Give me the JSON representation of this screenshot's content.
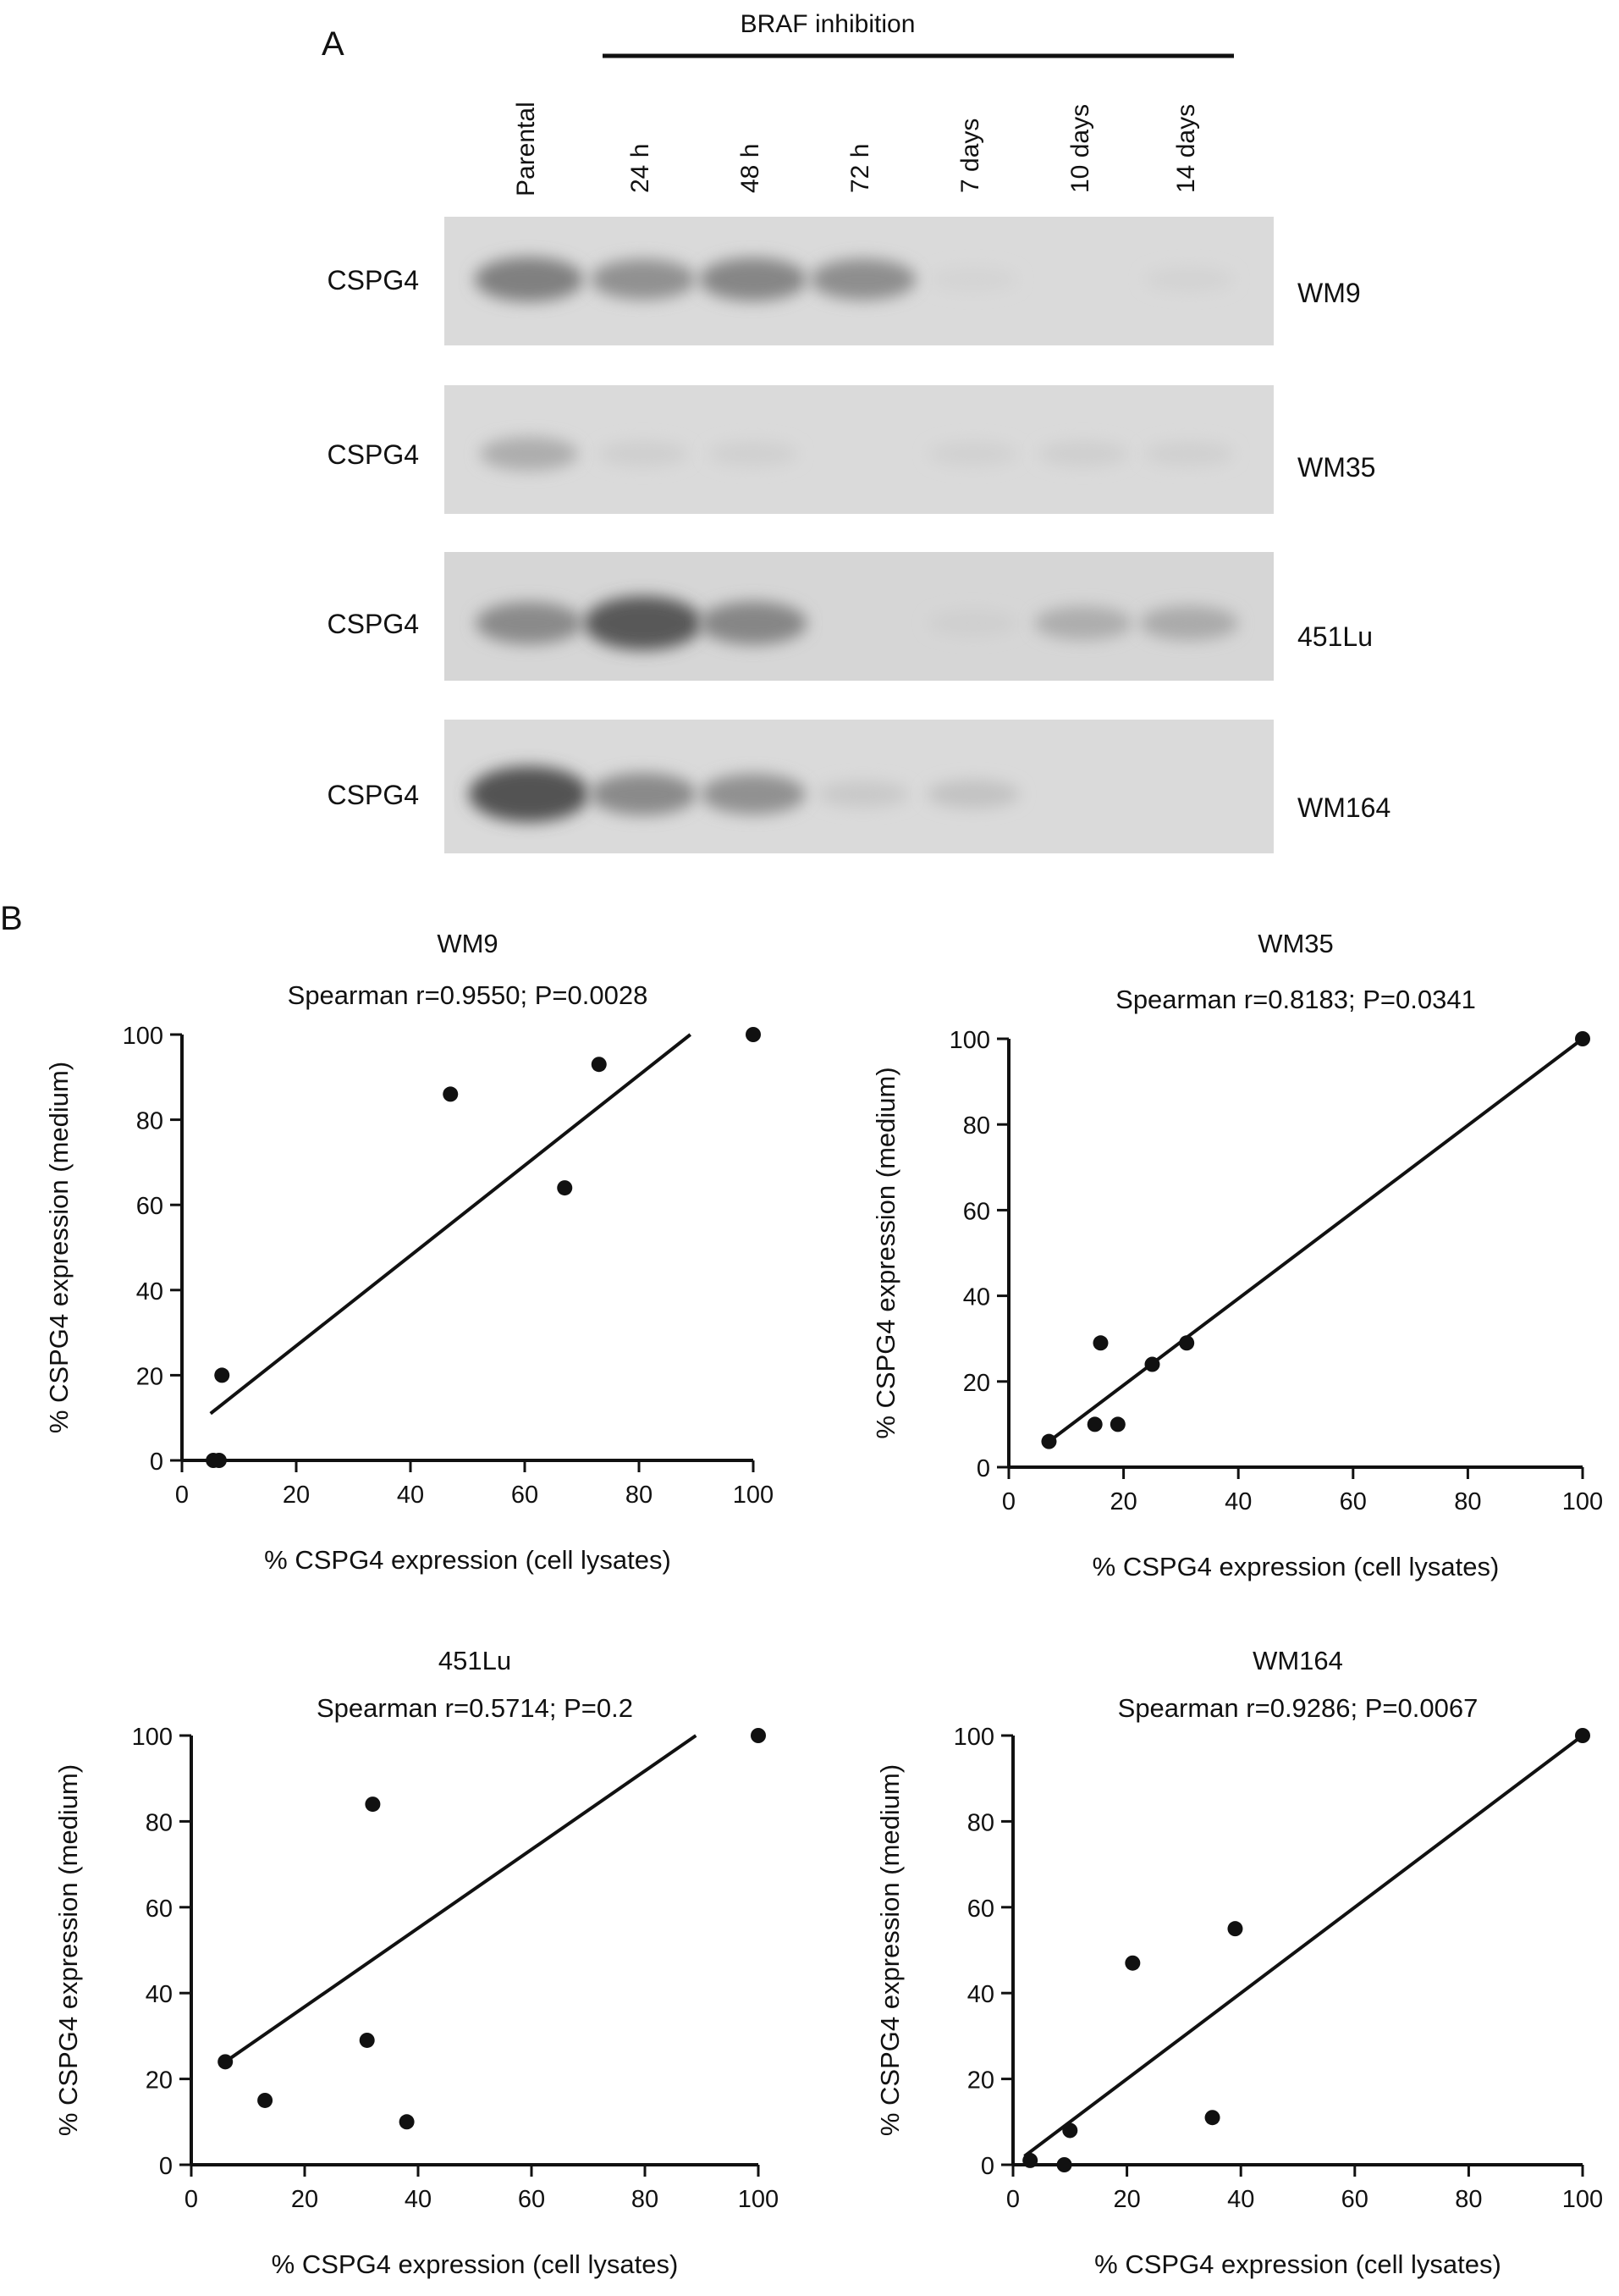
{
  "panel_a": {
    "label": "A",
    "treatment_label": "BRAF inhibition",
    "lanes": [
      "Parental",
      "24 h",
      "48 h",
      "72 h",
      "7 days",
      "10 days",
      "14 days"
    ],
    "blots": [
      {
        "protein": "CSPG4",
        "cell_line": "WM9",
        "band_intensity": [
          0.62,
          0.5,
          0.58,
          0.52,
          0.02,
          0.0,
          0.03
        ]
      },
      {
        "protein": "CSPG4",
        "cell_line": "WM35",
        "band_intensity": [
          0.3,
          0.06,
          0.05,
          0.0,
          0.04,
          0.06,
          0.05
        ]
      },
      {
        "protein": "CSPG4",
        "cell_line": "451Lu",
        "band_intensity": [
          0.55,
          0.9,
          0.58,
          0.0,
          0.06,
          0.3,
          0.32
        ]
      },
      {
        "protein": "CSPG4",
        "cell_line": "WM164",
        "band_intensity": [
          0.95,
          0.55,
          0.5,
          0.1,
          0.15,
          0.0,
          0.0
        ]
      }
    ]
  },
  "panel_b": {
    "label": "B"
  },
  "chart_data": [
    {
      "type": "scatter",
      "title": "WM9",
      "subtitle": "Spearman r=0.9550; P=0.0028",
      "xlabel": "% CSPG4 expression (cell lysates)",
      "ylabel": "% CSPG4 expression (medium)",
      "xlim": [
        0,
        100
      ],
      "ylim": [
        0,
        100
      ],
      "xticks": [
        0,
        20,
        40,
        60,
        80,
        100
      ],
      "yticks": [
        0,
        20,
        40,
        60,
        80,
        100
      ],
      "points": [
        {
          "x": 100,
          "y": 100
        },
        {
          "x": 73,
          "y": 93
        },
        {
          "x": 47,
          "y": 86
        },
        {
          "x": 67,
          "y": 64
        },
        {
          "x": 7,
          "y": 20
        },
        {
          "x": 5.5,
          "y": 0
        },
        {
          "x": 6.5,
          "y": 0
        }
      ],
      "fit_line": {
        "x": [
          5,
          89
        ],
        "y": [
          11,
          100
        ]
      }
    },
    {
      "type": "scatter",
      "title": "WM35",
      "subtitle": "Spearman r=0.8183; P=0.0341",
      "xlabel": "% CSPG4 expression (cell lysates)",
      "ylabel": "% CSPG4 expression (medium)",
      "xlim": [
        0,
        100
      ],
      "ylim": [
        0,
        100
      ],
      "xticks": [
        0,
        20,
        40,
        60,
        80,
        100
      ],
      "yticks": [
        0,
        20,
        40,
        60,
        80,
        100
      ],
      "points": [
        {
          "x": 100,
          "y": 100
        },
        {
          "x": 31,
          "y": 29
        },
        {
          "x": 16,
          "y": 29
        },
        {
          "x": 25,
          "y": 24
        },
        {
          "x": 15,
          "y": 10
        },
        {
          "x": 19,
          "y": 10
        },
        {
          "x": 7,
          "y": 6
        }
      ],
      "fit_line": {
        "x": [
          7,
          100
        ],
        "y": [
          6,
          100
        ]
      }
    },
    {
      "type": "scatter",
      "title": "451Lu",
      "subtitle": "Spearman r=0.5714; P=0.2",
      "xlabel": "% CSPG4 expression (cell lysates)",
      "ylabel": "% CSPG4 expression (medium)",
      "xlim": [
        0,
        100
      ],
      "ylim": [
        0,
        100
      ],
      "xticks": [
        0,
        20,
        40,
        60,
        80,
        100
      ],
      "yticks": [
        0,
        20,
        40,
        60,
        80,
        100
      ],
      "points": [
        {
          "x": 100,
          "y": 100
        },
        {
          "x": 32,
          "y": 84
        },
        {
          "x": 6,
          "y": 24
        },
        {
          "x": 31,
          "y": 29
        },
        {
          "x": 13,
          "y": 15
        },
        {
          "x": 38,
          "y": 10
        }
      ],
      "fit_line": {
        "x": [
          6,
          89
        ],
        "y": [
          24,
          100
        ]
      }
    },
    {
      "type": "scatter",
      "title": "WM164",
      "subtitle": "Spearman r=0.9286; P=0.0067",
      "xlabel": "% CSPG4 expression (cell lysates)",
      "ylabel": "% CSPG4 expression (medium)",
      "xlim": [
        0,
        100
      ],
      "ylim": [
        0,
        100
      ],
      "xticks": [
        0,
        20,
        40,
        60,
        80,
        100
      ],
      "yticks": [
        0,
        20,
        40,
        60,
        80,
        100
      ],
      "points": [
        {
          "x": 100,
          "y": 100
        },
        {
          "x": 39,
          "y": 55
        },
        {
          "x": 21,
          "y": 47
        },
        {
          "x": 35,
          "y": 11
        },
        {
          "x": 10,
          "y": 8
        },
        {
          "x": 3,
          "y": 1
        },
        {
          "x": 9,
          "y": 0
        }
      ],
      "fit_line": {
        "x": [
          2,
          100
        ],
        "y": [
          2,
          100
        ]
      }
    }
  ]
}
